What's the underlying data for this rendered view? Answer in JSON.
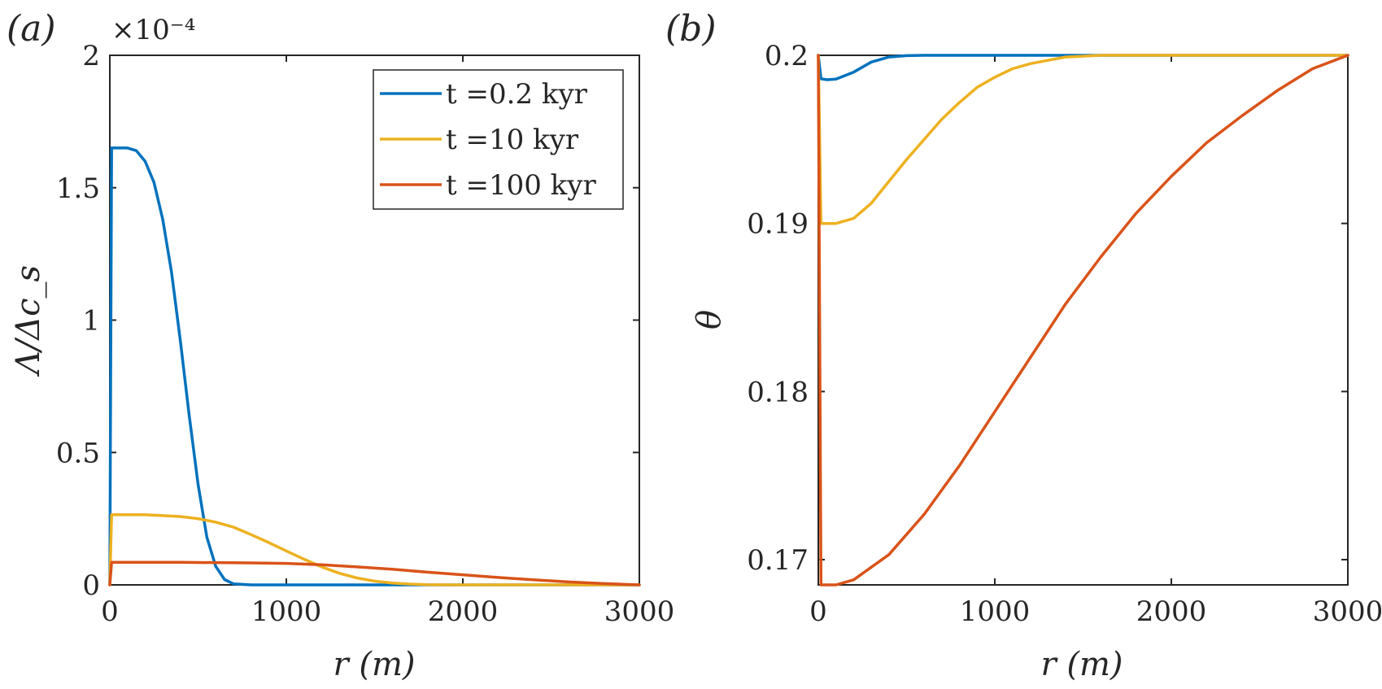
{
  "chart_data": [
    {
      "type": "line",
      "panel_label": "(a)",
      "xlabel": "r (m)",
      "ylabel": "Λ/Δc_s",
      "y_multiplier": "×10⁻⁴",
      "xlim": [
        0,
        3000
      ],
      "ylim": [
        0,
        2
      ],
      "x_ticks": [
        "0",
        "1000",
        "2000",
        "3000"
      ],
      "y_ticks": [
        "0",
        "0.5",
        "1",
        "1.5",
        "2"
      ],
      "legend_position": "top-right",
      "series": [
        {
          "name": "t =0.2 kyr",
          "color": "#0072BD",
          "points": [
            [
              0,
              0
            ],
            [
              10,
              1.65
            ],
            [
              100,
              1.65
            ],
            [
              150,
              1.64
            ],
            [
              200,
              1.6
            ],
            [
              250,
              1.52
            ],
            [
              300,
              1.38
            ],
            [
              350,
              1.18
            ],
            [
              400,
              0.92
            ],
            [
              450,
              0.64
            ],
            [
              500,
              0.38
            ],
            [
              550,
              0.18
            ],
            [
              600,
              0.07
            ],
            [
              650,
              0.02
            ],
            [
              700,
              0.004
            ],
            [
              800,
              0
            ],
            [
              3000,
              0
            ]
          ]
        },
        {
          "name": "t =10 kyr",
          "color": "#EDB120",
          "points": [
            [
              0,
              0
            ],
            [
              10,
              0.265
            ],
            [
              200,
              0.265
            ],
            [
              400,
              0.258
            ],
            [
              500,
              0.25
            ],
            [
              600,
              0.237
            ],
            [
              700,
              0.218
            ],
            [
              800,
              0.19
            ],
            [
              900,
              0.16
            ],
            [
              1000,
              0.128
            ],
            [
              1100,
              0.097
            ],
            [
              1200,
              0.068
            ],
            [
              1300,
              0.044
            ],
            [
              1400,
              0.026
            ],
            [
              1500,
              0.014
            ],
            [
              1600,
              0.007
            ],
            [
              1700,
              0.003
            ],
            [
              1800,
              0.001
            ],
            [
              2000,
              0
            ],
            [
              3000,
              0
            ]
          ]
        },
        {
          "name": "t =100 kyr",
          "color": "#D95319",
          "points": [
            [
              0,
              0
            ],
            [
              10,
              0.085
            ],
            [
              400,
              0.085
            ],
            [
              800,
              0.083
            ],
            [
              1000,
              0.081
            ],
            [
              1200,
              0.076
            ],
            [
              1400,
              0.068
            ],
            [
              1600,
              0.059
            ],
            [
              1800,
              0.048
            ],
            [
              2000,
              0.038
            ],
            [
              2200,
              0.028
            ],
            [
              2400,
              0.019
            ],
            [
              2600,
              0.011
            ],
            [
              2800,
              0.005
            ],
            [
              3000,
              0
            ]
          ]
        }
      ]
    },
    {
      "type": "line",
      "panel_label": "(b)",
      "xlabel": "r (m)",
      "ylabel": "θ",
      "xlim": [
        0,
        3000
      ],
      "ylim": [
        0.1685,
        0.2
      ],
      "x_ticks": [
        "0",
        "1000",
        "2000",
        "3000"
      ],
      "y_ticks": [
        "0.17",
        "0.18",
        "0.19",
        "0.2"
      ],
      "series": [
        {
          "name": "t =0.2 kyr",
          "color": "#0072BD",
          "points": [
            [
              0,
              0.2
            ],
            [
              15,
              0.1986
            ],
            [
              50,
              0.19855
            ],
            [
              100,
              0.19858
            ],
            [
              200,
              0.199
            ],
            [
              300,
              0.1996
            ],
            [
              400,
              0.1999
            ],
            [
              500,
              0.19998
            ],
            [
              600,
              0.2
            ],
            [
              3000,
              0.2
            ]
          ]
        },
        {
          "name": "t =10 kyr",
          "color": "#EDB120",
          "points": [
            [
              0,
              0.2
            ],
            [
              15,
              0.19
            ],
            [
              100,
              0.19
            ],
            [
              200,
              0.1903
            ],
            [
              300,
              0.1912
            ],
            [
              400,
              0.1925
            ],
            [
              500,
              0.1938
            ],
            [
              600,
              0.195
            ],
            [
              700,
              0.1962
            ],
            [
              800,
              0.1972
            ],
            [
              900,
              0.1981
            ],
            [
              1000,
              0.1987
            ],
            [
              1100,
              0.1992
            ],
            [
              1200,
              0.1995
            ],
            [
              1300,
              0.1997
            ],
            [
              1400,
              0.1999
            ],
            [
              1600,
              0.2
            ],
            [
              3000,
              0.2
            ]
          ]
        },
        {
          "name": "t =100 kyr",
          "color": "#D95319",
          "points": [
            [
              0,
              0.2
            ],
            [
              15,
              0.1685
            ],
            [
              100,
              0.1685
            ],
            [
              200,
              0.1688
            ],
            [
              400,
              0.1703
            ],
            [
              600,
              0.1727
            ],
            [
              800,
              0.1756
            ],
            [
              1000,
              0.1788
            ],
            [
              1200,
              0.182
            ],
            [
              1400,
              0.1852
            ],
            [
              1600,
              0.188
            ],
            [
              1800,
              0.1906
            ],
            [
              2000,
              0.1928
            ],
            [
              2200,
              0.1948
            ],
            [
              2400,
              0.1964
            ],
            [
              2600,
              0.1979
            ],
            [
              2800,
              0.1992
            ],
            [
              3000,
              0.2
            ]
          ]
        }
      ]
    }
  ]
}
